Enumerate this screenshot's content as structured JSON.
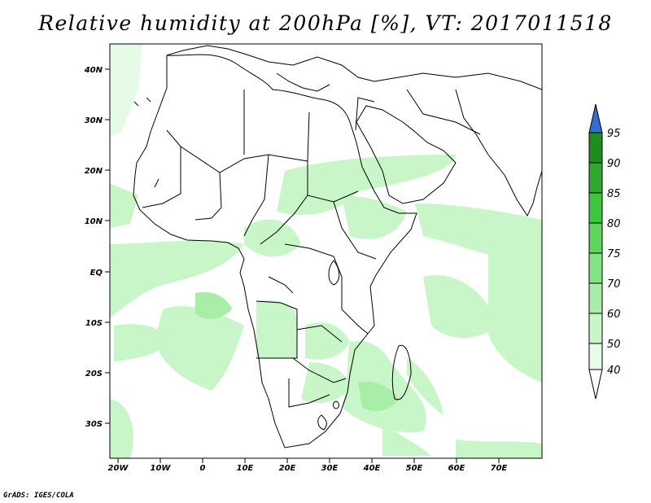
{
  "title": "Relative humidity at 200hPa [%], VT: 2017011518",
  "credit": "GrADS: IGES/COLA",
  "map": {
    "lat_labels": [
      "40N",
      "30N",
      "20N",
      "10N",
      "EQ",
      "10S",
      "20S",
      "30S"
    ],
    "lon_labels": [
      "20W",
      "10W",
      "0",
      "10E",
      "20E",
      "30E",
      "40E",
      "50E",
      "60E",
      "70E"
    ],
    "lon_range": [
      -22,
      80
    ],
    "lat_range": [
      -37,
      45
    ]
  },
  "colorbar": {
    "levels": [
      "95",
      "90",
      "85",
      "80",
      "75",
      "70",
      "60",
      "50",
      "40"
    ],
    "colors": [
      "#2e6fd0",
      "#1f8c1f",
      "#2fa82f",
      "#3fc43f",
      "#5ed65e",
      "#84e484",
      "#a8eea8",
      "#c8f6c8",
      "#e8fde8",
      "#ffffff"
    ]
  }
}
